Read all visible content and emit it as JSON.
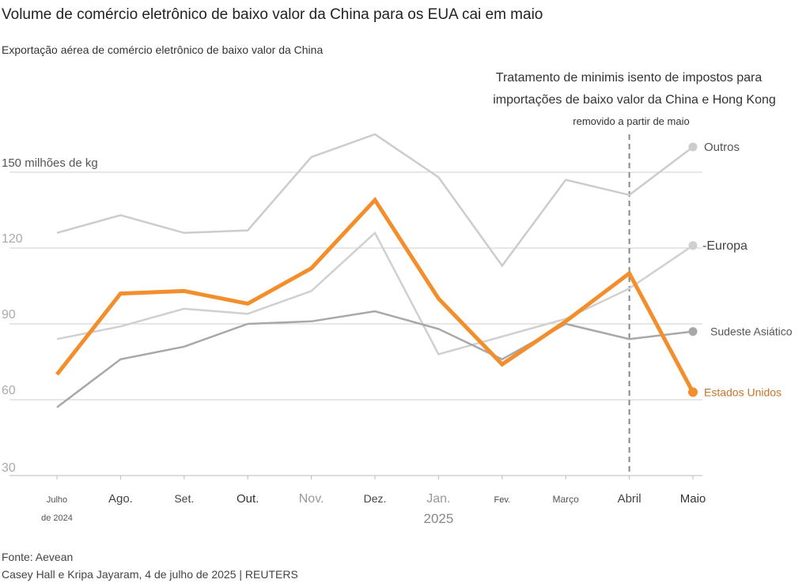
{
  "title": "Volume de comércio eletrônico de baixo valor da China para os EUA cai em maio",
  "subtitle": "Exportação aérea de comércio eletrônico de baixo valor da China",
  "source": "Fonte: Aevean",
  "credit": "Casey Hall e Kripa Jayaram, 4 de julho de 2025 | REUTERS",
  "annotation": {
    "line1": "Tratamento de minimis isento de impostos para",
    "line2": "importações de baixo valor da China e Hong Kong",
    "line3": "removido a partir de maio",
    "at_category": "Abril"
  },
  "colors": {
    "us": "#f28e2b",
    "us_label": "#c8742a",
    "others": "#cccccc",
    "europe": "#d0d0d0",
    "sea": "#a8a8a8",
    "grid": "#cfcfcf",
    "axis": "#bbbbbb"
  },
  "chart_data": {
    "type": "line",
    "ylabel": "150 milhões de kg",
    "ylim": [
      30,
      150
    ],
    "yticks": [
      {
        "value": 150,
        "label": "150 milhões de kg"
      },
      {
        "value": 120,
        "label": "120"
      },
      {
        "value": 90,
        "label": "90"
      },
      {
        "value": 60,
        "label": "60"
      },
      {
        "value": 30,
        "label": "30"
      }
    ],
    "categories": [
      "Julho",
      "Ago.",
      "Set.",
      "Out.",
      "Nov.",
      "Dez.",
      "Jan.",
      "Fev.",
      "Março",
      "Abril",
      "Maio"
    ],
    "category_sublabels": [
      "de 2024",
      "",
      "",
      "",
      "",
      "",
      "2025",
      "",
      "",
      "",
      ""
    ],
    "series": [
      {
        "name": "Outros",
        "key": "others",
        "values": [
          126,
          133,
          126,
          127,
          156,
          165,
          148,
          113,
          147,
          141,
          160
        ]
      },
      {
        "name": "-Europa",
        "key": "europe",
        "values": [
          84,
          89,
          96,
          94,
          103,
          126,
          78,
          85,
          92,
          104,
          121
        ]
      },
      {
        "name": "Sudeste Asiático",
        "key": "sea",
        "values": [
          57,
          76,
          81,
          90,
          91,
          95,
          88,
          76,
          90,
          84,
          87
        ]
      },
      {
        "name": "Estados Unidos",
        "key": "us",
        "values": [
          70,
          102,
          103,
          98,
          112,
          139,
          100,
          74,
          91,
          110,
          63
        ]
      }
    ]
  }
}
